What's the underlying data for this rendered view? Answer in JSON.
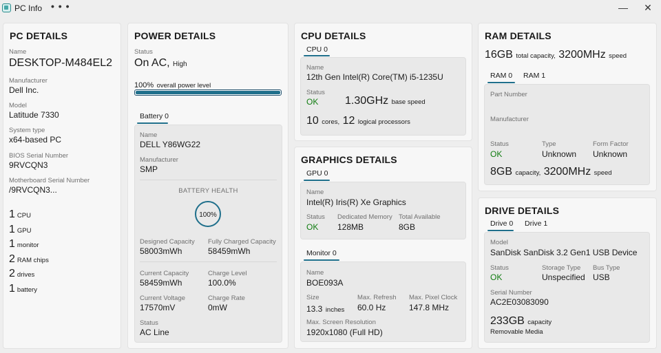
{
  "titlebar": {
    "title": "PC Info",
    "more": "• • •",
    "minimize": "—",
    "close": "✕"
  },
  "pc": {
    "title": "PC DETAILS",
    "name_label": "Name",
    "name": "DESKTOP-M484EL2",
    "manufacturer_label": "Manufacturer",
    "manufacturer": "Dell Inc.",
    "model_label": "Model",
    "model": "Latitude 7330",
    "system_type_label": "System type",
    "system_type": "x64-based PC",
    "bios_label": "BIOS Serial Number",
    "bios": "9RVCQN3",
    "mobo_label": "Motherboard Serial Number",
    "mobo": "/9RVCQN3...",
    "counts": [
      {
        "n": "1",
        "t": "CPU"
      },
      {
        "n": "1",
        "t": "GPU"
      },
      {
        "n": "1",
        "t": "monitor"
      },
      {
        "n": "2",
        "t": "RAM chips"
      },
      {
        "n": "2",
        "t": "drives"
      },
      {
        "n": "1",
        "t": "battery"
      }
    ]
  },
  "power": {
    "title": "POWER DETAILS",
    "status_label": "Status",
    "status": "On AC,",
    "status_sub": "High",
    "level": "100%",
    "level_text": "overall power level",
    "level_fraction": 1.0,
    "battery_tab": "Battery 0",
    "name_label": "Name",
    "name": "DELL Y86WG22",
    "manufacturer_label": "Manufacturer",
    "manufacturer": "SMP",
    "health_label": "BATTERY HEALTH",
    "health": "100%",
    "designed_label": "Designed Capacity",
    "designed": "58003mWh",
    "full_label": "Fully Charged Capacity",
    "full": "58459mWh",
    "current_cap_label": "Current Capacity",
    "current_cap": "58459mWh",
    "charge_level_label": "Charge Level",
    "charge_level": "100.0%",
    "voltage_label": "Current Voltage",
    "voltage": "17570mV",
    "charge_rate_label": "Charge Rate",
    "charge_rate": "0mW",
    "bstatus_label": "Status",
    "bstatus": "AC Line"
  },
  "cpu": {
    "title": "CPU DETAILS",
    "tab": "CPU 0",
    "name_label": "Name",
    "name": "12th Gen Intel(R) Core(TM) i5-1235U",
    "status_label": "Status",
    "status": "OK",
    "speed": "1.30GHz",
    "speed_sub": "base speed",
    "cores": "10",
    "cores_sub": "cores,",
    "logical": "12",
    "logical_sub": "logical processors"
  },
  "graphics": {
    "title": "GRAPHICS DETAILS",
    "gpu_tab": "GPU 0",
    "name_label": "Name",
    "name": "Intel(R) Iris(R) Xe Graphics",
    "status_label": "Status",
    "status": "OK",
    "dedicated_label": "Dedicated Memory",
    "dedicated": "128MB",
    "total_label": "Total Available",
    "total": "8GB",
    "monitor_tab": "Monitor 0",
    "mname_label": "Name",
    "mname": "BOE093A",
    "size_label": "Size",
    "size": "13.3",
    "size_sub": "inches",
    "refresh_label": "Max. Refresh",
    "refresh": "60.0 Hz",
    "clock_label": "Max. Pixel Clock",
    "clock": "147.8 MHz",
    "res_label": "Max. Screen Resolution",
    "res": "1920x1080 (Full HD)"
  },
  "ram": {
    "title": "RAM DETAILS",
    "capacity": "16GB",
    "capacity_sub": "total capacity,",
    "speed": "3200MHz",
    "speed_sub": "speed",
    "tab0": "RAM 0",
    "tab1": "RAM 1",
    "part_label": "Part Number",
    "manufacturer_label": "Manufacturer",
    "status_label": "Status",
    "status": "OK",
    "type_label": "Type",
    "type": "Unknown",
    "form_label": "Form Factor",
    "form": "Unknown",
    "chip_capacity": "8GB",
    "chip_capacity_sub": "capacity,",
    "chip_speed": "3200MHz",
    "chip_speed_sub": "speed"
  },
  "drive": {
    "title": "DRIVE DETAILS",
    "tab0": "Drive 0",
    "tab1": "Drive 1",
    "model_label": "Model",
    "model": "SanDisk SanDisk 3.2 Gen1 USB Device",
    "status_label": "Status",
    "status": "OK",
    "storage_label": "Storage Type",
    "storage": "Unspecified",
    "bus_label": "Bus Type",
    "bus": "USB",
    "serial_label": "Serial Number",
    "serial": "AC2E03083090",
    "capacity": "233GB",
    "capacity_sub": "capacity",
    "media": "Removable Media"
  }
}
